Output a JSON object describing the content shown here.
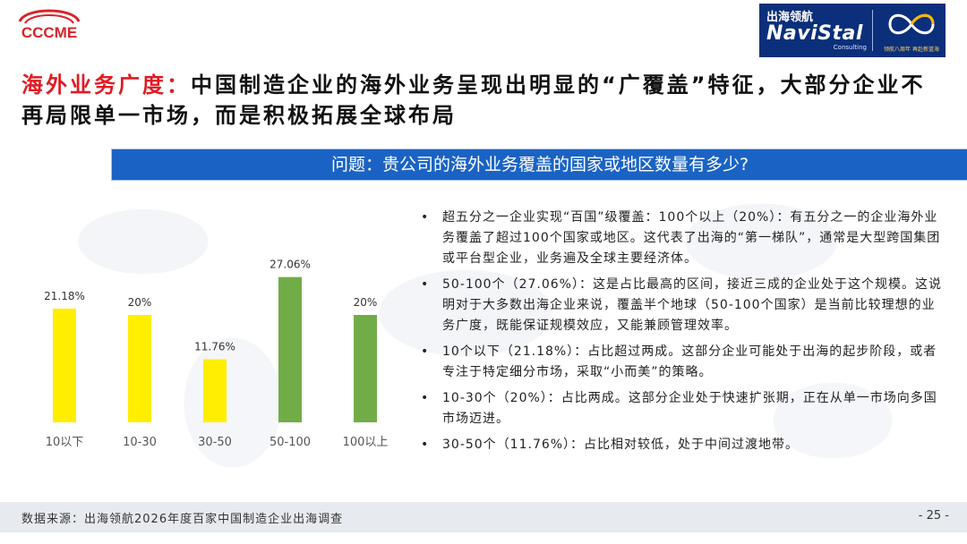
{
  "header": {
    "left_logo_text": "CCCME",
    "right_logo": {
      "cn": "出海领航",
      "en": "NaviStal",
      "sub": "Consulting",
      "badge_caption": "领航八周年 再赴新蓝海"
    }
  },
  "title": {
    "highlight": "海外业务广度：",
    "rest": "中国制造企业的海外业务呈现出明显的“广覆盖”特征，大部分企业不再局限单一市场，而是积极拓展全球布局"
  },
  "question": "问题：贵公司的海外业务覆盖的国家或地区数量有多少?",
  "chart_data": {
    "type": "bar",
    "categories": [
      "10以下",
      "10-30",
      "30-50",
      "50-100",
      "100以上"
    ],
    "values": [
      21.18,
      20,
      11.76,
      27.06,
      20
    ],
    "data_labels": [
      "21.18%",
      "20%",
      "11.76%",
      "27.06%",
      "20%"
    ],
    "bar_colors": [
      "#ffee00",
      "#ffee00",
      "#ffee00",
      "#70ad47",
      "#70ad47"
    ],
    "title": "",
    "xlabel": "",
    "ylabel": "",
    "ylim": [
      0,
      30
    ],
    "grid": false
  },
  "bullets": [
    "超五分之一企业实现“百国”级覆盖：100个以上（20%）：有五分之一的企业海外业务覆盖了超过100个国家或地区。这代表了出海的“第一梯队”，通常是大型跨国集团或平台型企业，业务遍及全球主要经济体。",
    "50-100个（27.06%）：这是占比最高的区间，接近三成的企业处于这个规模。这说明对于大多数出海企业来说，覆盖半个地球（50-100个国家）是当前比较理想的业务广度，既能保证规模效应，又能兼顾管理效率。",
    "10个以下（21.18%）：占比超过两成。这部分企业可能处于出海的起步阶段，或者专注于特定细分市场，采取“小而美”的策略。",
    "10-30个（20%）：占比两成。这部分企业处于快速扩张期，正在从单一市场向多国市场迈进。",
    "30-50个（11.76%）：占比相对较低，处于中间过渡地带。"
  ],
  "footer": {
    "source": "数据来源：出海领航2026年度百家中国制造企业出海调查",
    "page": "- 25 -"
  },
  "colors": {
    "accent_red": "#e01b22",
    "question_blue": "#1a63c4",
    "navy": "#0b2f7a"
  }
}
